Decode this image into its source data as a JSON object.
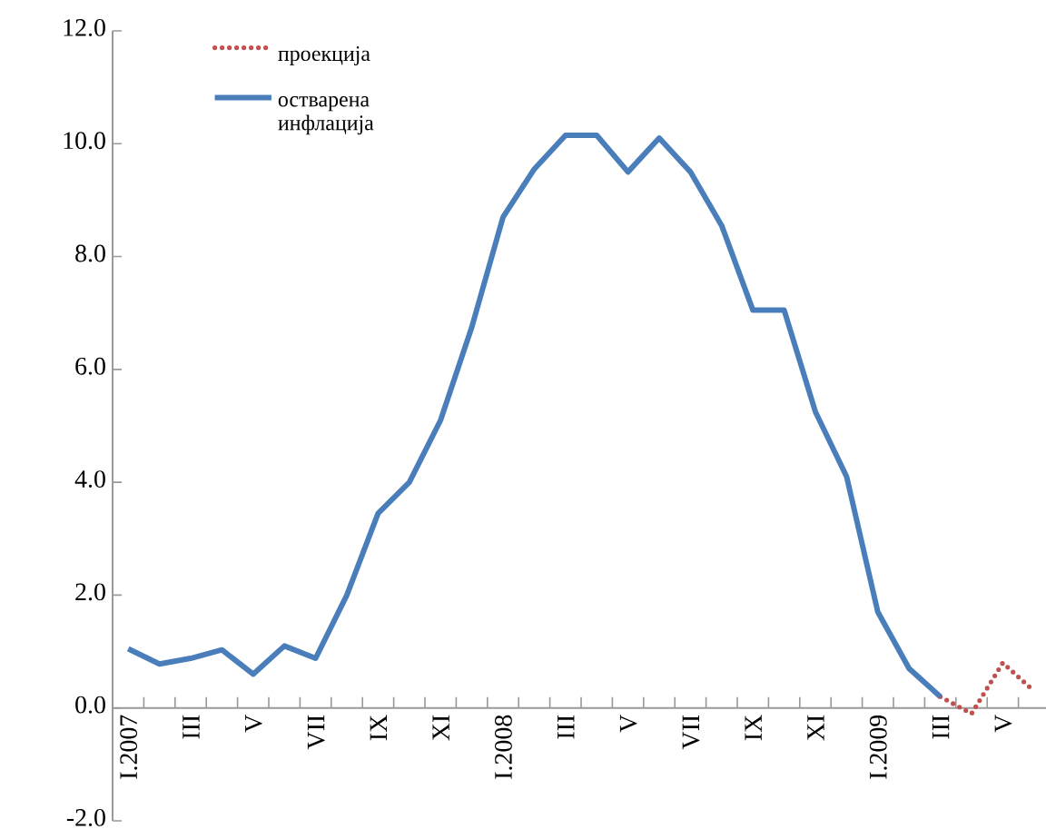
{
  "chart_data": {
    "type": "line",
    "categories": [
      "I.2007",
      null,
      "III",
      null,
      "V",
      null,
      "VII",
      null,
      "IX",
      null,
      "XI",
      null,
      "I.2008",
      null,
      "III",
      null,
      "V",
      null,
      "VII",
      null,
      "IX",
      null,
      "XI",
      null,
      "I.2009",
      null,
      "III",
      null,
      "V",
      null
    ],
    "series": [
      {
        "name": "проекција",
        "color": "#c0504d",
        "line_style": "dotted",
        "values": [
          null,
          null,
          null,
          null,
          null,
          null,
          null,
          null,
          null,
          null,
          null,
          null,
          null,
          null,
          null,
          null,
          null,
          null,
          null,
          null,
          null,
          null,
          null,
          null,
          null,
          null,
          0.2,
          -0.1,
          0.8,
          0.3
        ]
      },
      {
        "name": "остварена инфлација",
        "color": "#4a7ebb",
        "line_style": "solid",
        "values": [
          1.05,
          0.78,
          0.88,
          1.03,
          0.6,
          1.1,
          0.88,
          2.0,
          3.45,
          4.0,
          5.1,
          6.75,
          8.7,
          9.55,
          10.15,
          10.15,
          9.5,
          10.1,
          9.5,
          8.55,
          7.05,
          7.05,
          5.25,
          4.1,
          1.7,
          0.7,
          0.2,
          null,
          null,
          null
        ]
      }
    ],
    "ylim": [
      -2,
      12
    ],
    "yticks": [
      {
        "value": -2,
        "label": "-2.0"
      },
      {
        "value": 0,
        "label": "0.0"
      },
      {
        "value": 2,
        "label": "2.0"
      },
      {
        "value": 4,
        "label": "4.0"
      },
      {
        "value": 6,
        "label": "6.0"
      },
      {
        "value": 8,
        "label": "8.0"
      },
      {
        "value": 10,
        "label": "10.0"
      },
      {
        "value": 12,
        "label": "12.0"
      }
    ],
    "grid": false,
    "legend": "top left",
    "marker": "none"
  }
}
